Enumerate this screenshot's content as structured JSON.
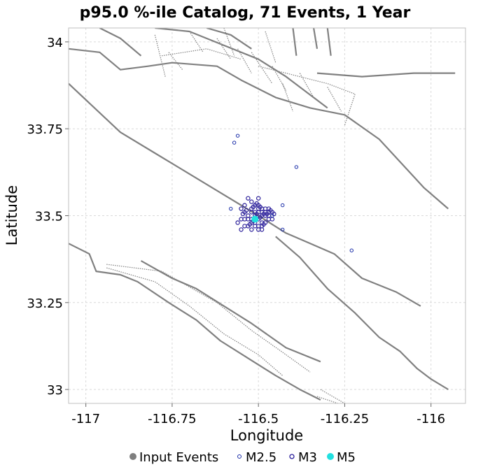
{
  "chart_data": {
    "type": "scatter",
    "title": "p95.0 %-ile Catalog, 71 Events, 1 Year",
    "xlabel": "Longitude",
    "ylabel": "Latitude",
    "xlim": [
      -117.05,
      -115.9
    ],
    "ylim": [
      32.96,
      34.04
    ],
    "grid": true,
    "legend_position": "bottom",
    "x_ticks": [
      {
        "value": -117,
        "label": "-117"
      },
      {
        "value": -116.75,
        "label": "-116.75"
      },
      {
        "value": -116.5,
        "label": "-116.5"
      },
      {
        "value": -116.25,
        "label": "-116.25"
      },
      {
        "value": -116,
        "label": "-116"
      }
    ],
    "y_ticks": [
      {
        "value": 34,
        "label": "34"
      },
      {
        "value": 33.75,
        "label": "33.75"
      },
      {
        "value": 33.5,
        "label": "33.5"
      },
      {
        "value": 33.25,
        "label": "33.25"
      },
      {
        "value": 33,
        "label": "33"
      }
    ],
    "legend": [
      {
        "label": "Input Events",
        "marker": "filled",
        "color": "#7f7f7f"
      },
      {
        "label": "M2.5",
        "marker": "open-small",
        "color": "#1a2da8"
      },
      {
        "label": "M3",
        "marker": "open",
        "color": "#2a1e9a"
      },
      {
        "label": "M5",
        "marker": "filled",
        "color": "#22e0e0"
      }
    ],
    "colors": {
      "fault": "#808080",
      "grid": "#d9d9d9",
      "m25": "#1a2da8",
      "m3": "#2a1e9a",
      "m5": "#22e0e0"
    },
    "faults_solid": [
      [
        [
          -117.05,
          33.98
        ],
        [
          -116.96,
          33.97
        ],
        [
          -116.9,
          33.92
        ],
        [
          -116.82,
          33.93
        ],
        [
          -116.75,
          33.94
        ],
        [
          -116.62,
          33.93
        ],
        [
          -116.55,
          33.89
        ],
        [
          -116.45,
          33.84
        ],
        [
          -116.35,
          33.81
        ],
        [
          -116.25,
          33.79
        ],
        [
          -116.15,
          33.72
        ],
        [
          -116.02,
          33.58
        ],
        [
          -115.95,
          33.52
        ]
      ],
      [
        [
          -117.05,
          33.88
        ],
        [
          -116.9,
          33.74
        ],
        [
          -116.8,
          33.68
        ],
        [
          -116.7,
          33.62
        ],
        [
          -116.6,
          33.56
        ],
        [
          -116.5,
          33.5
        ],
        [
          -116.42,
          33.45
        ],
        [
          -116.35,
          33.42
        ],
        [
          -116.28,
          33.39
        ],
        [
          -116.2,
          33.32
        ],
        [
          -116.1,
          33.28
        ],
        [
          -116.03,
          33.24
        ]
      ],
      [
        [
          -116.45,
          33.44
        ],
        [
          -116.38,
          33.38
        ],
        [
          -116.3,
          33.29
        ],
        [
          -116.22,
          33.22
        ],
        [
          -116.15,
          33.15
        ],
        [
          -116.09,
          33.11
        ],
        [
          -116.04,
          33.06
        ],
        [
          -116.0,
          33.03
        ],
        [
          -115.95,
          33.0
        ]
      ],
      [
        [
          -116.84,
          33.37
        ],
        [
          -116.75,
          33.32
        ],
        [
          -116.68,
          33.29
        ],
        [
          -116.6,
          33.24
        ],
        [
          -116.52,
          33.19
        ],
        [
          -116.42,
          33.12
        ],
        [
          -116.32,
          33.08
        ]
      ],
      [
        [
          -117.05,
          33.42
        ],
        [
          -116.99,
          33.39
        ],
        [
          -116.97,
          33.34
        ],
        [
          -116.9,
          33.33
        ],
        [
          -116.85,
          33.31
        ],
        [
          -116.76,
          33.25
        ],
        [
          -116.68,
          33.2
        ],
        [
          -116.61,
          33.14
        ],
        [
          -116.53,
          33.09
        ],
        [
          -116.45,
          33.04
        ],
        [
          -116.38,
          33.0
        ],
        [
          -116.32,
          32.97
        ]
      ],
      [
        [
          -116.33,
          33.91
        ],
        [
          -116.2,
          33.9
        ],
        [
          -116.05,
          33.91
        ],
        [
          -115.93,
          33.91
        ]
      ],
      [
        [
          -116.96,
          34.04
        ],
        [
          -116.9,
          34.01
        ],
        [
          -116.84,
          33.96
        ]
      ],
      [
        [
          -116.8,
          34.04
        ],
        [
          -116.7,
          34.03
        ],
        [
          -116.6,
          33.99
        ],
        [
          -116.5,
          33.95
        ],
        [
          -116.42,
          33.9
        ],
        [
          -116.3,
          33.81
        ]
      ],
      [
        [
          -116.65,
          34.04
        ],
        [
          -116.58,
          34.02
        ],
        [
          -116.52,
          33.98
        ]
      ],
      [
        [
          -116.4,
          34.04
        ],
        [
          -116.39,
          33.96
        ]
      ],
      [
        [
          -116.34,
          34.04
        ],
        [
          -116.33,
          33.98
        ]
      ],
      [
        [
          -116.3,
          34.04
        ],
        [
          -116.29,
          33.96
        ]
      ]
    ],
    "faults_dotted": [
      [
        [
          -116.94,
          33.36
        ],
        [
          -116.78,
          33.34
        ],
        [
          -116.62,
          33.25
        ],
        [
          -116.52,
          33.17
        ],
        [
          -116.42,
          33.1
        ],
        [
          -116.35,
          33.05
        ]
      ],
      [
        [
          -116.94,
          33.35
        ],
        [
          -116.8,
          33.31
        ],
        [
          -116.7,
          33.24
        ],
        [
          -116.6,
          33.16
        ],
        [
          -116.5,
          33.1
        ],
        [
          -116.43,
          33.04
        ]
      ],
      [
        [
          -116.32,
          33.0
        ],
        [
          -116.25,
          32.96
        ]
      ],
      [
        [
          -116.33,
          32.98
        ],
        [
          -116.27,
          32.96
        ]
      ],
      [
        [
          -116.76,
          33.97
        ],
        [
          -116.72,
          33.92
        ]
      ],
      [
        [
          -116.7,
          34.03
        ],
        [
          -116.66,
          33.97
        ]
      ],
      [
        [
          -116.62,
          34.01
        ],
        [
          -116.58,
          33.95
        ]
      ],
      [
        [
          -116.56,
          33.98
        ],
        [
          -116.52,
          33.91
        ]
      ],
      [
        [
          -116.52,
          33.97
        ],
        [
          -116.46,
          33.88
        ]
      ],
      [
        [
          -116.46,
          33.93
        ],
        [
          -116.42,
          33.86
        ]
      ],
      [
        [
          -116.38,
          33.91
        ],
        [
          -116.34,
          33.84
        ]
      ],
      [
        [
          -116.3,
          33.87
        ],
        [
          -116.26,
          33.8
        ]
      ],
      [
        [
          -116.5,
          33.93
        ],
        [
          -116.3,
          33.88
        ],
        [
          -116.22,
          33.85
        ],
        [
          -116.25,
          33.76
        ]
      ],
      [
        [
          -116.78,
          33.96
        ],
        [
          -116.65,
          33.98
        ],
        [
          -116.55,
          33.95
        ]
      ],
      [
        [
          -116.8,
          34.02
        ],
        [
          -116.77,
          33.9
        ]
      ],
      [
        [
          -116.6,
          34.04
        ],
        [
          -116.57,
          33.96
        ]
      ],
      [
        [
          -116.48,
          34.03
        ],
        [
          -116.45,
          33.94
        ]
      ],
      [
        [
          -116.43,
          33.88
        ],
        [
          -116.4,
          33.8
        ]
      ]
    ],
    "events_m25": [
      [
        -116.56,
        33.73
      ],
      [
        -116.57,
        33.71
      ],
      [
        -116.39,
        33.64
      ],
      [
        -116.23,
        33.4
      ],
      [
        -116.43,
        33.53
      ],
      [
        -116.43,
        33.46
      ],
      [
        -116.58,
        33.52
      ],
      [
        -116.46,
        33.5
      ]
    ],
    "events_m3": [
      [
        -116.53,
        33.55
      ],
      [
        -116.52,
        33.54
      ],
      [
        -116.51,
        33.53
      ],
      [
        -116.5,
        33.53
      ],
      [
        -116.49,
        33.52
      ],
      [
        -116.48,
        33.52
      ],
      [
        -116.47,
        33.51
      ],
      [
        -116.46,
        33.51
      ],
      [
        -116.55,
        33.52
      ],
      [
        -116.54,
        33.51
      ],
      [
        -116.52,
        33.51
      ],
      [
        -116.51,
        33.51
      ],
      [
        -116.5,
        33.51
      ],
      [
        -116.49,
        33.5
      ],
      [
        -116.48,
        33.5
      ],
      [
        -116.47,
        33.5
      ],
      [
        -116.55,
        33.49
      ],
      [
        -116.54,
        33.49
      ],
      [
        -116.53,
        33.49
      ],
      [
        -116.52,
        33.48
      ],
      [
        -116.51,
        33.48
      ],
      [
        -116.5,
        33.49
      ],
      [
        -116.49,
        33.48
      ],
      [
        -116.48,
        33.48
      ],
      [
        -116.54,
        33.47
      ],
      [
        -116.53,
        33.47
      ],
      [
        -116.52,
        33.46
      ],
      [
        -116.51,
        33.47
      ],
      [
        -116.5,
        33.46
      ],
      [
        -116.49,
        33.47
      ],
      [
        -116.47,
        33.49
      ],
      [
        -116.55,
        33.46
      ],
      [
        -116.52,
        33.52
      ],
      [
        -116.5,
        33.52
      ],
      [
        -116.53,
        33.5
      ],
      [
        -116.51,
        33.5
      ],
      [
        -116.49,
        33.51
      ],
      [
        -116.48,
        33.51
      ],
      [
        -116.47,
        33.52
      ],
      [
        -116.46,
        33.49
      ],
      [
        -116.5,
        33.47
      ],
      [
        -116.49,
        33.46
      ],
      [
        -116.56,
        33.48
      ],
      [
        -116.54,
        33.53
      ],
      [
        -116.5,
        33.55
      ],
      [
        -116.52,
        33.49
      ],
      [
        -116.505,
        33.505
      ],
      [
        -116.495,
        33.495
      ],
      [
        -116.515,
        33.485
      ],
      [
        -116.485,
        33.505
      ],
      [
        -116.535,
        33.515
      ],
      [
        -116.475,
        33.505
      ],
      [
        -116.525,
        33.475
      ],
      [
        -116.465,
        33.515
      ],
      [
        -116.545,
        33.505
      ],
      [
        -116.455,
        33.505
      ],
      [
        -116.485,
        33.475
      ],
      [
        -116.505,
        33.535
      ],
      [
        -116.495,
        33.525
      ],
      [
        -116.515,
        33.525
      ]
    ],
    "events_m5": [
      [
        -116.51,
        33.49
      ]
    ]
  }
}
